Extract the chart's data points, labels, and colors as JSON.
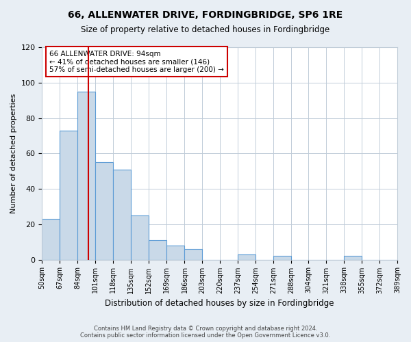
{
  "title": "66, ALLENWATER DRIVE, FORDINGBRIDGE, SP6 1RE",
  "subtitle": "Size of property relative to detached houses in Fordingbridge",
  "xlabel": "Distribution of detached houses by size in Fordingbridge",
  "ylabel": "Number of detached properties",
  "bar_edges": [
    50,
    67,
    84,
    101,
    118,
    135,
    152,
    169,
    186,
    203,
    220,
    237,
    254,
    271,
    288,
    304,
    321,
    338,
    355,
    372,
    389
  ],
  "bar_heights": [
    23,
    73,
    95,
    55,
    51,
    25,
    11,
    8,
    6,
    0,
    0,
    3,
    0,
    2,
    0,
    0,
    0,
    2,
    0,
    0
  ],
  "bar_color": "#c9d9e8",
  "bar_edge_color": "#5b9bd5",
  "property_line_x": 94,
  "property_line_color": "#cc0000",
  "annotation_box_color": "#cc0000",
  "annotation_text_line1": "66 ALLENWATER DRIVE: 94sqm",
  "annotation_text_line2": "← 41% of detached houses are smaller (146)",
  "annotation_text_line3": "57% of semi-detached houses are larger (200) →",
  "ylim": [
    0,
    120
  ],
  "yticks": [
    0,
    20,
    40,
    60,
    80,
    100,
    120
  ],
  "tick_labels": [
    "50sqm",
    "67sqm",
    "84sqm",
    "101sqm",
    "118sqm",
    "135sqm",
    "152sqm",
    "169sqm",
    "186sqm",
    "203sqm",
    "220sqm",
    "237sqm",
    "254sqm",
    "271sqm",
    "288sqm",
    "304sqm",
    "321sqm",
    "338sqm",
    "355sqm",
    "372sqm",
    "389sqm"
  ],
  "footer_line1": "Contains HM Land Registry data © Crown copyright and database right 2024.",
  "footer_line2": "Contains public sector information licensed under the Open Government Licence v3.0.",
  "background_color": "#e8eef4",
  "plot_bg_color": "#ffffff"
}
